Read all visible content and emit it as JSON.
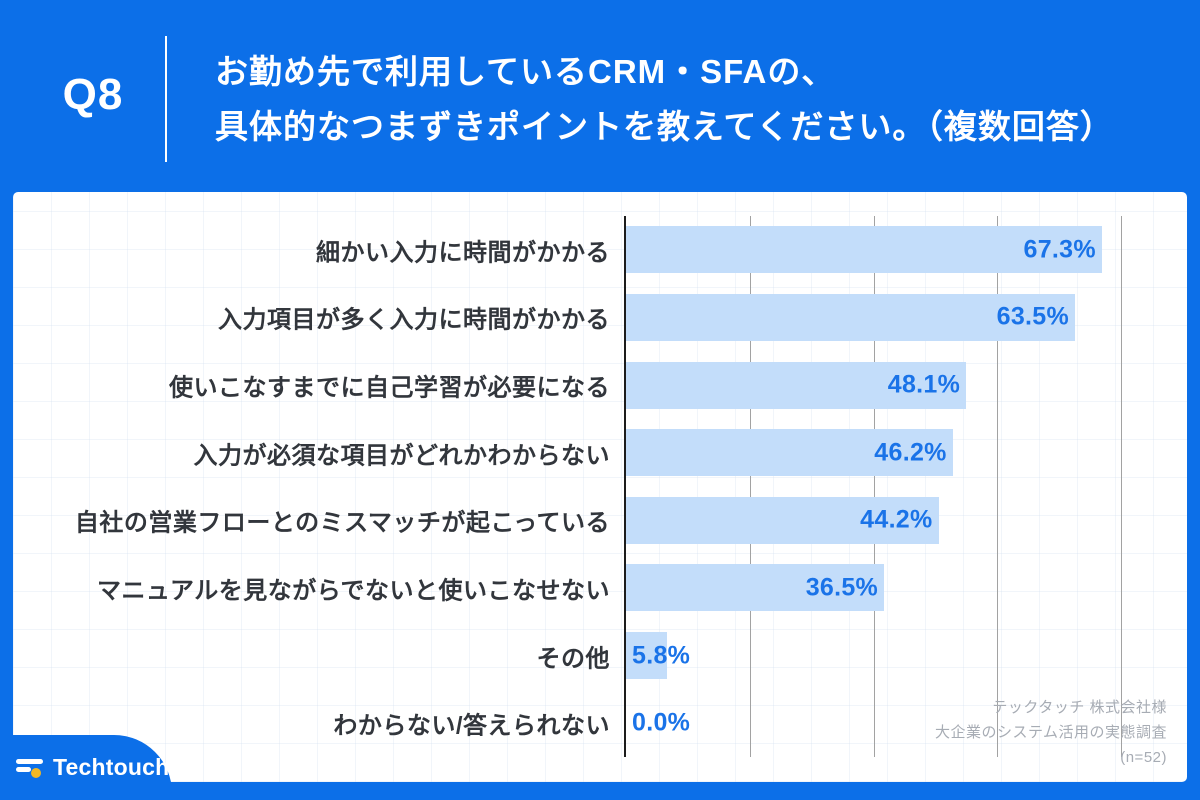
{
  "header": {
    "question_no": "Q8",
    "title_line1": "お勤め先で利用しているCRM・SFAの、",
    "title_line2": "具体的なつまずきポイントを教えてください。（複数回答）"
  },
  "chart_data": {
    "type": "bar",
    "orientation": "horizontal",
    "title": "お勤め先で利用しているCRM・SFAの、具体的なつまずきポイントを教えてください。（複数回答）",
    "categories": [
      "細かい入力に時間がかかる",
      "入力項目が多く入力に時間がかかる",
      "使いこなすまでに自己学習が必要になる",
      "入力が必須な項目がどれかわからない",
      "自社の営業フローとのミスマッチが起こっている",
      "マニュアルを見ながらでないと使いこなせない",
      "その他",
      "わからない/答えられない"
    ],
    "values": [
      67.3,
      63.5,
      48.1,
      46.2,
      44.2,
      36.5,
      5.8,
      0.0
    ],
    "value_labels": [
      "67.3%",
      "63.5%",
      "48.1%",
      "46.2%",
      "44.2%",
      "36.5%",
      "5.8%",
      "0.0%"
    ],
    "xlim": [
      0,
      70
    ],
    "gridlines_pct": [
      17.5,
      35,
      52.5,
      70
    ],
    "grid": "vertical-only",
    "legend": "none",
    "bar_color": "#c3ddfa",
    "value_label_color": "#1a73e8"
  },
  "footer": {
    "source_line1": "テックタッチ 株式会社様",
    "source_line2": "大企業のシステム活用の実態調査",
    "source_line3": "(n=52)",
    "logo_text": "Techtouch"
  },
  "colors": {
    "background_blue": "#0c6fe8",
    "card_background": "#ffffff",
    "bar_fill": "#c3ddfa",
    "value_text": "#1a73e8",
    "category_text": "#32363c",
    "gridline": "#a2a2a2",
    "axis": "#1c1c1c",
    "source_text": "#a7acb4",
    "logo_dot_yellow": "#f2b824"
  }
}
